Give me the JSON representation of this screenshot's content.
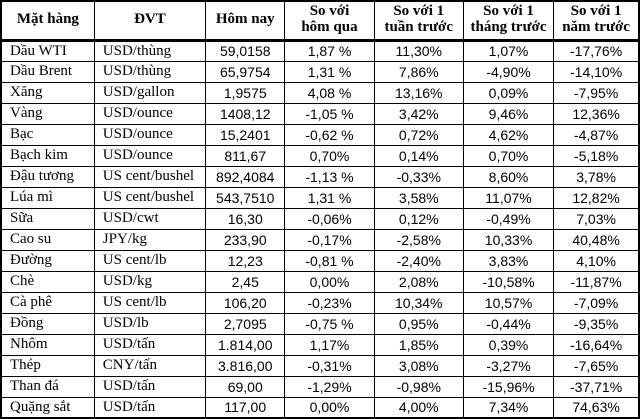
{
  "colors": {
    "text": "#000000",
    "border": "#000000",
    "background": "#ffffff"
  },
  "chart_data": {
    "type": "table",
    "columns": [
      "Mặt hàng",
      "ĐVT",
      "Hôm nay",
      "So với\nhôm qua",
      "So với 1\ntuần trước",
      "So với 1\ntháng trước",
      "So với 1\nnăm trước"
    ],
    "rows": [
      [
        "Dầu WTI",
        "USD/thùng",
        "59,0158",
        "1,87 %",
        "11,30%",
        "1,07%",
        "-17,76%"
      ],
      [
        "Dầu Brent",
        "USD/thùng",
        "65,9754",
        "1,31 %",
        "7,86%",
        "-4,90%",
        "-14,10%"
      ],
      [
        "Xăng",
        "USD/gallon",
        "1,9575",
        "4,08 %",
        "13,16%",
        "0,09%",
        "-7,95%"
      ],
      [
        "Vàng",
        "USD/ounce",
        "1408,12",
        "-1,05 %",
        "3,42%",
        "9,46%",
        "12,36%"
      ],
      [
        "Bạc",
        "USD/ounce",
        "15,2401",
        "-0,62 %",
        "0,72%",
        "4,62%",
        "-4,87%"
      ],
      [
        "Bạch kim",
        "USD/ounce",
        "811,67",
        "0,70%",
        "0,14%",
        "0,70%",
        "-5,18%"
      ],
      [
        "Đậu tương",
        "US cent/bushel",
        "892,4084",
        "-1,13 %",
        "-0,33%",
        "8,60%",
        "3,78%"
      ],
      [
        "Lúa mì",
        "US cent/bushel",
        "543,7510",
        "1,31 %",
        "3,58%",
        "11,07%",
        "12,82%"
      ],
      [
        "Sữa",
        "USD/cwt",
        "16,30",
        "-0,06%",
        "0,12%",
        "-0,49%",
        "7,03%"
      ],
      [
        "Cao su",
        "JPY/kg",
        "233,90",
        "-0,17%",
        "-2,58%",
        "10,33%",
        "40,48%"
      ],
      [
        "Đường",
        "US cent/lb",
        "12,23",
        "-0,81 %",
        "-2,40%",
        "3,83%",
        "4,10%"
      ],
      [
        "Chè",
        "USD/kg",
        "2,45",
        "0,00%",
        "2,08%",
        "-10,58%",
        "-11,87%"
      ],
      [
        "Cà phê",
        "US cent/lb",
        "106,20",
        "-0,23%",
        "10,34%",
        "10,57%",
        "-7,09%"
      ],
      [
        "Đồng",
        "USD/lb",
        "2,7095",
        "-0,75 %",
        "0,95%",
        "-0,44%",
        "-9,35%"
      ],
      [
        "Nhôm",
        "USD/tấn",
        "1.814,00",
        "1,17%",
        "1,85%",
        "0,39%",
        "-16,64%"
      ],
      [
        "Thép",
        "CNY/tấn",
        "3.816,00",
        "-0,31%",
        "3,08%",
        "-3,27%",
        "-7,65%"
      ],
      [
        "Than đá",
        "USD/tấn",
        "69,00",
        "-1,29%",
        "-0,98%",
        "-15,96%",
        "-37,71%"
      ],
      [
        "Quặng sắt",
        "USD/tấn",
        "117,00",
        "0,00%",
        "4,00%",
        "7,34%",
        "74,63%"
      ]
    ]
  }
}
